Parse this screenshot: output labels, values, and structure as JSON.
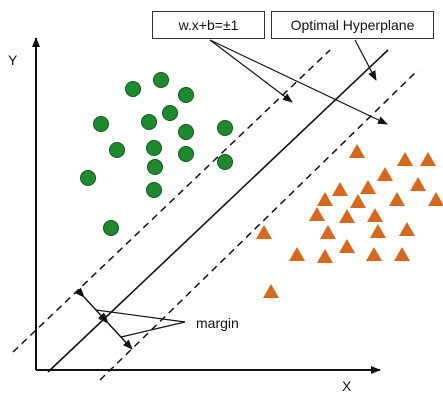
{
  "labels": {
    "equation": "w.x+b=±1",
    "hyperplane": "Optimal Hyperplane",
    "margin": "margin",
    "x_axis": "X",
    "y_axis": "Y"
  },
  "colors": {
    "circle_fill": "#1e8a2e",
    "circle_stroke": "#0e5a1a",
    "triangle_fill": "#d9671a",
    "line": "#111111"
  },
  "points": {
    "circles": [
      [
        133,
        89
      ],
      [
        161,
        80
      ],
      [
        186,
        95
      ],
      [
        101,
        124
      ],
      [
        149,
        122
      ],
      [
        170,
        113
      ],
      [
        186,
        132
      ],
      [
        225,
        128
      ],
      [
        117,
        150
      ],
      [
        154,
        148
      ],
      [
        186,
        154
      ],
      [
        225,
        162
      ],
      [
        88,
        178
      ],
      [
        155,
        167
      ],
      [
        154,
        190
      ],
      [
        111,
        228
      ]
    ],
    "triangles": [
      [
        357,
        152
      ],
      [
        405,
        160
      ],
      [
        428,
        160
      ],
      [
        385,
        175
      ],
      [
        368,
        188
      ],
      [
        340,
        190
      ],
      [
        418,
        185
      ],
      [
        397,
        200
      ],
      [
        436,
        200
      ],
      [
        325,
        200
      ],
      [
        358,
        202
      ],
      [
        317,
        215
      ],
      [
        347,
        217
      ],
      [
        375,
        216
      ],
      [
        328,
        233
      ],
      [
        407,
        230
      ],
      [
        264,
        233
      ],
      [
        378,
        232
      ],
      [
        347,
        247
      ],
      [
        297,
        255
      ],
      [
        325,
        257
      ],
      [
        374,
        255
      ],
      [
        402,
        255
      ],
      [
        271,
        292
      ]
    ]
  }
}
